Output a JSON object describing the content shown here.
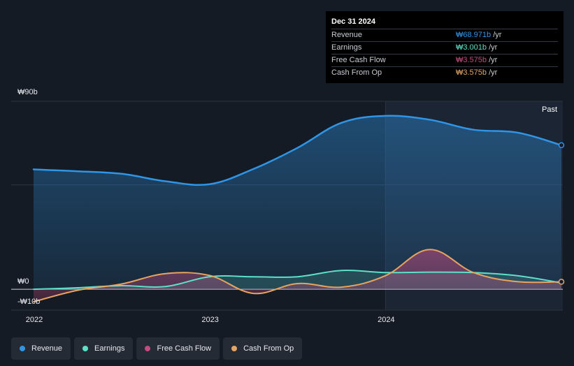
{
  "colors": {
    "revenue": "#2f95e6",
    "earnings": "#5ee0c8",
    "free_cash_flow": "#c44b7f",
    "cash_from_op": "#e8a45f",
    "background": "#151b24",
    "tooltip_bg": "#000000"
  },
  "tooltip": {
    "date": "Dec 31 2024",
    "rows": [
      {
        "label": "Revenue",
        "value": "₩68.971b",
        "unit": " /yr",
        "color": "#2f95e6"
      },
      {
        "label": "Earnings",
        "value": "₩3.001b",
        "unit": " /yr",
        "color": "#5ee0c8"
      },
      {
        "label": "Free Cash Flow",
        "value": "₩3.575b",
        "unit": " /yr",
        "color": "#c44b7f"
      },
      {
        "label": "Cash From Op",
        "value": "₩3.575b",
        "unit": " /yr",
        "color": "#e8a45f"
      }
    ]
  },
  "legend": [
    {
      "label": "Revenue",
      "color": "#2f95e6"
    },
    {
      "label": "Earnings",
      "color": "#5ee0c8"
    },
    {
      "label": "Free Cash Flow",
      "color": "#c44b7f"
    },
    {
      "label": "Cash From Op",
      "color": "#e8a45f"
    }
  ],
  "chart_data": {
    "type": "area",
    "title": "",
    "xlabel": "",
    "ylabel": "",
    "ylim": [
      -10,
      90
    ],
    "xlim": [
      2022.0,
      2025.0
    ],
    "y_tick_labels": [
      {
        "value": 90,
        "label": "₩90b"
      },
      {
        "value": 0,
        "label": "₩0"
      },
      {
        "value": -10,
        "label": "-₩10b"
      }
    ],
    "x_tick_labels": [
      {
        "value": 2022,
        "label": "2022"
      },
      {
        "value": 2023,
        "label": "2023"
      },
      {
        "value": 2024,
        "label": "2024"
      }
    ],
    "past_label": "Past",
    "past_start": 2024.0,
    "grid": true,
    "legend_position": "bottom",
    "x": [
      2022.0,
      2022.25,
      2022.5,
      2022.75,
      2023.0,
      2023.25,
      2023.5,
      2023.75,
      2024.0,
      2024.25,
      2024.5,
      2024.75,
      2025.0
    ],
    "series": [
      {
        "name": "Revenue",
        "key": "revenue",
        "values": [
          57.4,
          56.5,
          55.3,
          51.7,
          50.3,
          57.6,
          67.7,
          79.7,
          83.0,
          81.2,
          76.4,
          75.0,
          68.971
        ]
      },
      {
        "name": "Earnings",
        "key": "earnings",
        "values": [
          0.0,
          0.7,
          1.7,
          1.3,
          6.0,
          6.0,
          6.0,
          9.0,
          8.0,
          8.2,
          8.0,
          6.5,
          3.001
        ]
      },
      {
        "name": "Free Cash Flow",
        "key": "free_cash_flow",
        "values": [
          -6.0,
          -0.5,
          2.5,
          7.5,
          6.6,
          -2.0,
          2.7,
          1.0,
          6.5,
          19.0,
          8.0,
          3.6,
          3.575
        ]
      },
      {
        "name": "Cash From Op",
        "key": "cash_from_op",
        "values": [
          -6.0,
          -0.5,
          2.5,
          7.5,
          6.6,
          -2.0,
          2.7,
          1.0,
          6.5,
          19.0,
          8.0,
          3.6,
          3.575
        ]
      }
    ]
  }
}
